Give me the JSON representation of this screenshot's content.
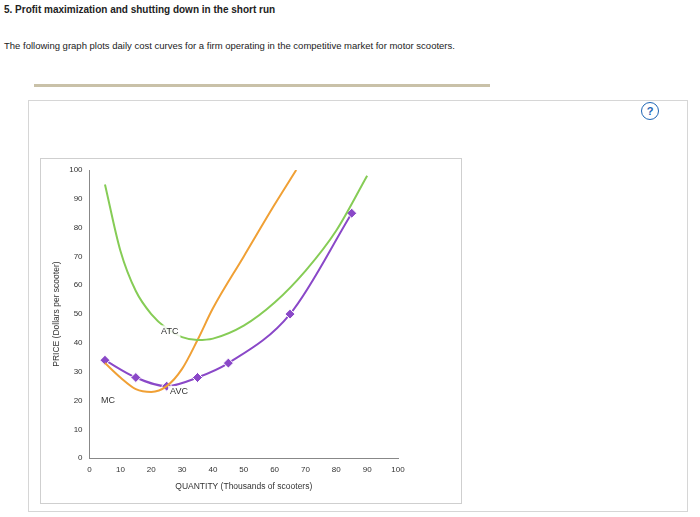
{
  "header": {
    "title": "5. Profit maximization and shutting down in the short run",
    "intro": "The following graph plots daily cost curves for a firm operating in the competitive market for motor scooters.",
    "help_icon": "?"
  },
  "chart_data": {
    "type": "line",
    "x_label": "QUANTITY (Thousands of scooters)",
    "y_label": "PRICE (Dollars per scooter)",
    "xlim": [
      0,
      100
    ],
    "xticks": [
      0,
      10,
      20,
      30,
      40,
      50,
      60,
      70,
      80,
      90,
      100
    ],
    "ylim": [
      0,
      100
    ],
    "yticks": [
      0,
      10,
      20,
      30,
      40,
      50,
      60,
      70,
      80,
      90,
      100
    ],
    "grid": false,
    "series": [
      {
        "name": "ATC",
        "color": "#86cc56",
        "marker": "none",
        "label_at": [
          26,
          44
        ],
        "x": [
          5,
          10,
          15,
          20,
          25,
          30,
          35,
          40,
          50,
          60,
          70,
          80,
          90
        ],
        "values": [
          95,
          72,
          58,
          50,
          45,
          42,
          41,
          41.5,
          46,
          54,
          65,
          79,
          98
        ]
      },
      {
        "name": "MC",
        "color": "#f0a035",
        "marker": "none",
        "label_at": [
          6,
          20
        ],
        "x": [
          5,
          10,
          15,
          20,
          25,
          30,
          35,
          40,
          50,
          60,
          67
        ],
        "values": [
          33,
          28,
          24,
          23,
          25,
          31,
          41,
          52,
          70,
          88,
          100
        ]
      },
      {
        "name": "AVC",
        "color": "#8a48c8",
        "marker": "diamond",
        "label_at": [
          29,
          23
        ],
        "x": [
          5,
          15,
          25,
          35,
          45,
          65,
          85
        ],
        "values": [
          34,
          28,
          25,
          28,
          33,
          50,
          85
        ]
      }
    ]
  }
}
